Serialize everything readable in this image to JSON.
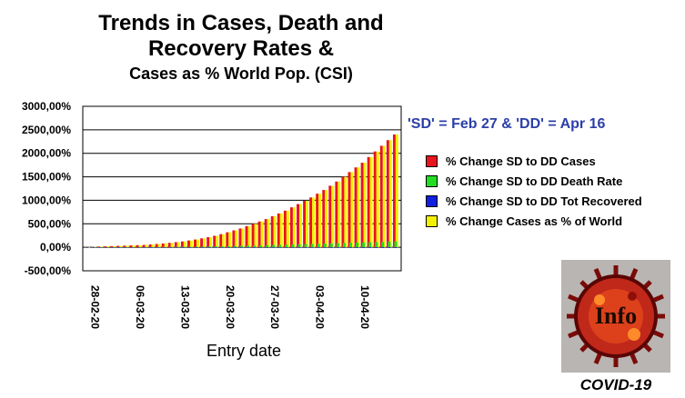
{
  "chart_data": {
    "type": "bar",
    "title": [
      "Trends in Cases, Death and",
      "Recovery Rates &"
    ],
    "subtitle": "Cases as % World Pop. (CSI)",
    "xlabel": "Entry date",
    "ylabel": "",
    "ylim": [
      -500,
      3000
    ],
    "y_ticks": [
      "3000,00%",
      "2500,00%",
      "2000,00%",
      "1500,00%",
      "1000,00%",
      "500,00%",
      "0,00%",
      "-500,00%"
    ],
    "y_tick_values": [
      3000,
      2500,
      2000,
      1500,
      1000,
      500,
      0,
      -500
    ],
    "x_tick_labels": [
      "28-02-20",
      "06-03-20",
      "13-03-20",
      "20-03-20",
      "27-03-20",
      "03-04-20",
      "10-04-20"
    ],
    "categories": [
      "28-02-20",
      "29-02-20",
      "01-03-20",
      "02-03-20",
      "03-03-20",
      "04-03-20",
      "05-03-20",
      "06-03-20",
      "07-03-20",
      "08-03-20",
      "09-03-20",
      "10-03-20",
      "11-03-20",
      "12-03-20",
      "13-03-20",
      "14-03-20",
      "15-03-20",
      "16-03-20",
      "17-03-20",
      "18-03-20",
      "19-03-20",
      "20-03-20",
      "21-03-20",
      "22-03-20",
      "23-03-20",
      "24-03-20",
      "25-03-20",
      "26-03-20",
      "27-03-20",
      "28-03-20",
      "29-03-20",
      "30-03-20",
      "31-03-20",
      "01-04-20",
      "02-04-20",
      "03-04-20",
      "04-04-20",
      "05-04-20",
      "06-04-20",
      "07-04-20",
      "08-04-20",
      "09-04-20",
      "10-04-20",
      "11-04-20",
      "12-04-20",
      "13-04-20",
      "14-04-20",
      "15-04-20",
      "16-04-20"
    ],
    "grid": "horizontal",
    "legend_heading": "'SD' = Feb 27 & 'DD' = Apr 16",
    "legend_position": "right",
    "series": [
      {
        "name": "% Change SD to DD Cases",
        "color": "#e8141e",
        "values": [
          5,
          10,
          15,
          20,
          25,
          30,
          35,
          40,
          45,
          50,
          60,
          70,
          80,
          95,
          110,
          125,
          145,
          165,
          190,
          215,
          245,
          280,
          320,
          360,
          400,
          450,
          500,
          550,
          600,
          660,
          720,
          780,
          850,
          920,
          990,
          1060,
          1140,
          1220,
          1310,
          1400,
          1500,
          1600,
          1700,
          1800,
          1920,
          2040,
          2160,
          2280,
          2400
        ]
      },
      {
        "name": "% Change SD to DD Death Rate",
        "color": "#22dd22",
        "values": [
          1,
          1,
          2,
          2,
          3,
          3,
          4,
          4,
          5,
          5,
          6,
          7,
          8,
          9,
          10,
          11,
          12,
          14,
          16,
          18,
          20,
          22,
          25,
          28,
          31,
          34,
          37,
          40,
          44,
          48,
          52,
          56,
          60,
          64,
          68,
          72,
          76,
          80,
          84,
          88,
          92,
          96,
          100,
          104,
          108,
          112,
          116,
          120,
          124
        ]
      },
      {
        "name": "% Change SD to DD Tot Recovered",
        "color": "#1020e0",
        "values": [
          0,
          0,
          0,
          0,
          -1,
          -1,
          -1,
          -2,
          -2,
          -2,
          -3,
          -3,
          -3,
          -4,
          -4,
          -4,
          -5,
          -5,
          -5,
          -6,
          -6,
          -6,
          -7,
          -7,
          -7,
          -8,
          -8,
          -8,
          -9,
          -9,
          -9,
          -10,
          -10,
          -10,
          -11,
          -11,
          -11,
          -12,
          -12,
          -12,
          -13,
          -13,
          -13,
          -14,
          -14,
          -14,
          -15,
          -15,
          -15
        ]
      },
      {
        "name": "% Change Cases as % of World",
        "color": "#f5f000",
        "values": [
          5,
          10,
          15,
          20,
          25,
          30,
          35,
          40,
          45,
          50,
          60,
          70,
          80,
          95,
          110,
          125,
          145,
          165,
          190,
          215,
          245,
          280,
          320,
          360,
          400,
          450,
          500,
          550,
          600,
          660,
          720,
          780,
          850,
          920,
          990,
          1060,
          1140,
          1220,
          1310,
          1400,
          1500,
          1600,
          1700,
          1800,
          1920,
          2040,
          2160,
          2280,
          2400
        ]
      }
    ]
  },
  "logo": {
    "text": "Info",
    "caption": "COVID-19"
  }
}
